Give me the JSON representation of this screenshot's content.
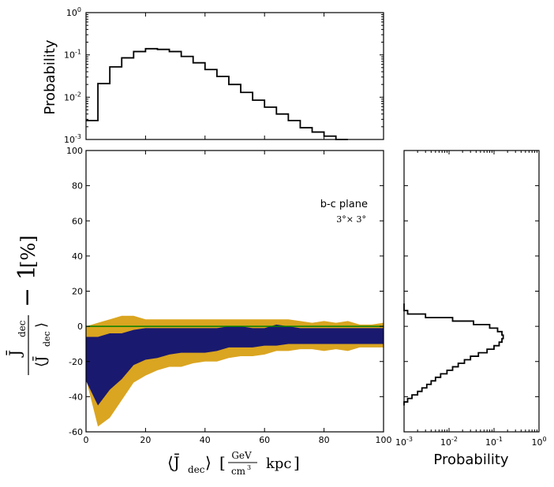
{
  "colors": {
    "outer_band": "#daa520",
    "inner_band": "#191970",
    "zero_line": "#008000",
    "axes": "#000000",
    "histogram": "#000000"
  },
  "chart_data": [
    {
      "id": "main",
      "type": "area",
      "description_label": "b-c plane",
      "annotation_secondary": "3°× 3°",
      "xlabel_parts": {
        "left": "⟨J̄",
        "sub": "dec",
        "right": "⟩",
        "unit_num": "GeV",
        "unit_den": "cm",
        "unit_den_sup": "3",
        "unit_tail": "kpc"
      },
      "ylabel_parts": {
        "num": "J̄",
        "num_sub": "dec",
        "den": "⟨J̄",
        "den_sub": "dec",
        "den_close": "⟩",
        "minus_one": "− 1",
        "percent": "[%]"
      },
      "xlim": [
        0,
        100
      ],
      "ylim": [
        -60,
        100
      ],
      "xticks": [
        0,
        20,
        40,
        60,
        80,
        100
      ],
      "yticks": [
        -60,
        -40,
        -20,
        0,
        20,
        40,
        60,
        80,
        100
      ],
      "x": [
        0,
        4,
        8,
        12,
        16,
        20,
        24,
        28,
        32,
        36,
        40,
        44,
        48,
        52,
        56,
        60,
        64,
        68,
        72,
        76,
        80,
        84,
        88,
        92,
        96,
        100
      ],
      "series": [
        {
          "name": "outer_band",
          "upper": [
            0,
            2,
            4,
            6,
            6,
            4,
            4,
            4,
            4,
            4,
            4,
            4,
            4,
            4,
            4,
            4,
            4,
            4,
            3,
            2,
            3,
            2,
            3,
            1,
            1,
            2
          ],
          "lower": [
            -30,
            -57,
            -52,
            -42,
            -32,
            -28,
            -25,
            -23,
            -23,
            -21,
            -20,
            -20,
            -18,
            -17,
            -17,
            -16,
            -14,
            -14,
            -13,
            -13,
            -14,
            -13,
            -14,
            -12,
            -12,
            -12
          ]
        },
        {
          "name": "inner_band",
          "upper": [
            -6,
            -6,
            -4,
            -4,
            -2,
            -1,
            -1,
            -1,
            -1,
            -1,
            -1,
            -1,
            0,
            0,
            -1,
            -1,
            1,
            0,
            -1,
            -1,
            -1,
            -1,
            -1,
            -1,
            -1,
            -1
          ],
          "lower": [
            -31,
            -45,
            -36,
            -30,
            -22,
            -19,
            -18,
            -16,
            -15,
            -15,
            -15,
            -14,
            -12,
            -12,
            -12,
            -11,
            -11,
            -10,
            -10,
            -10,
            -10,
            -10,
            -10,
            -10,
            -10,
            -10
          ]
        }
      ],
      "reference_line_y": 0
    },
    {
      "id": "top_histogram",
      "type": "line",
      "drawstyle": "steps",
      "ylabel": "Probability",
      "yscale": "log",
      "ylim": [
        0.001,
        1
      ],
      "yticks": [
        {
          "base": "10",
          "exp": "-3"
        },
        {
          "base": "10",
          "exp": "-2"
        },
        {
          "base": "10",
          "exp": "-1"
        },
        {
          "base": "10",
          "exp": "0"
        }
      ],
      "xlim": [
        0,
        100
      ],
      "bin_edges": [
        0,
        4,
        8,
        12,
        16,
        20,
        24,
        28,
        32,
        36,
        40,
        44,
        48,
        52,
        56,
        60,
        64,
        68,
        72,
        76,
        80,
        84,
        88
      ],
      "values": [
        0.0028,
        0.021,
        0.052,
        0.085,
        0.12,
        0.14,
        0.135,
        0.12,
        0.092,
        0.065,
        0.045,
        0.031,
        0.02,
        0.013,
        0.0085,
        0.0058,
        0.004,
        0.0028,
        0.0019,
        0.0015,
        0.0012,
        0.001
      ]
    },
    {
      "id": "right_histogram",
      "type": "line",
      "drawstyle": "steps",
      "orientation": "horizontal",
      "xlabel": "Probability",
      "xscale": "log",
      "xlim": [
        0.001,
        1
      ],
      "xticks": [
        {
          "base": "10",
          "exp": "-3"
        },
        {
          "base": "10",
          "exp": "-2"
        },
        {
          "base": "10",
          "exp": "-1"
        },
        {
          "base": "10",
          "exp": "0"
        }
      ],
      "ylim": [
        -60,
        100
      ],
      "bin_edges": [
        -45,
        -43,
        -41,
        -39,
        -37,
        -35,
        -33,
        -31,
        -29,
        -27,
        -25,
        -23,
        -21,
        -19,
        -17,
        -15,
        -13,
        -11,
        -9,
        -7,
        -5,
        -3,
        -1,
        1,
        3,
        5,
        7,
        9,
        11,
        13
      ],
      "values": [
        0.001,
        0.0012,
        0.0015,
        0.002,
        0.0025,
        0.0032,
        0.004,
        0.005,
        0.0065,
        0.009,
        0.012,
        0.016,
        0.022,
        0.03,
        0.045,
        0.07,
        0.1,
        0.13,
        0.15,
        0.16,
        0.15,
        0.12,
        0.08,
        0.035,
        0.012,
        0.003,
        0.0012,
        0.001,
        0.001
      ]
    }
  ]
}
